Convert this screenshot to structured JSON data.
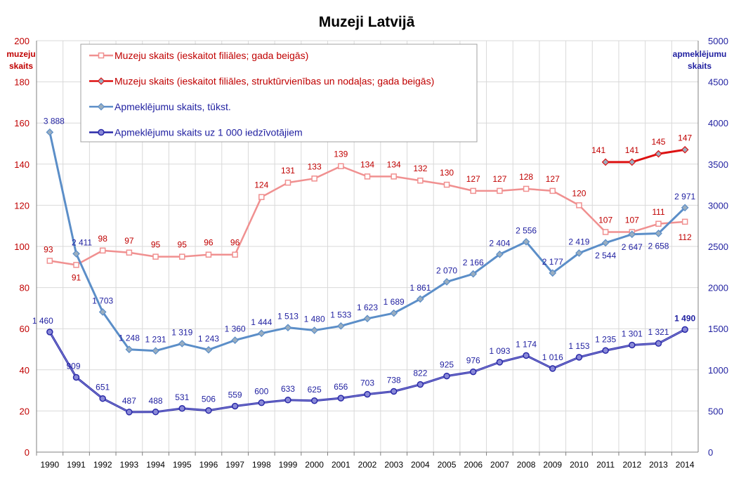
{
  "chart_data": {
    "type": "line",
    "title": "Muzeji Latvijā",
    "ylabel_left": [
      "muzeju",
      "skaits"
    ],
    "ylabel_right": [
      "apmeklējumu",
      "skaits"
    ],
    "ylim_left": [
      0,
      200
    ],
    "ylim_right": [
      0,
      5000
    ],
    "yticks_left": [
      "0",
      "20",
      "40",
      "60",
      "80",
      "100",
      "120",
      "140",
      "160",
      "180",
      "200"
    ],
    "yticks_right": [
      "0",
      "500",
      "1000",
      "1500",
      "2000",
      "2500",
      "3000",
      "3500",
      "4000",
      "4500",
      "5000"
    ],
    "grid": true,
    "legend_position": "top-left",
    "x": [
      "1990",
      "1991",
      "1992",
      "1993",
      "1994",
      "1995",
      "1996",
      "1997",
      "1998",
      "1999",
      "2000",
      "2001",
      "2002",
      "2003",
      "2004",
      "2005",
      "2006",
      "2007",
      "2008",
      "2009",
      "2010",
      "2011",
      "2012",
      "2013",
      "2014"
    ],
    "series": [
      {
        "name": "Muzeju skaits (ieskaitot filiāles; gada beigās)",
        "axis": "left",
        "color": "#f09090",
        "marker": "square",
        "values": [
          93,
          91,
          98,
          97,
          95,
          95,
          96,
          96,
          124,
          131,
          133,
          139,
          134,
          134,
          132,
          130,
          127,
          127,
          128,
          127,
          120,
          107,
          107,
          111,
          112
        ],
        "labels": [
          "93",
          "91",
          "98",
          "97",
          "95",
          "95",
          "96",
          "96",
          "124",
          "131",
          "133",
          "139",
          "134",
          "134",
          "132",
          "130",
          "127",
          "127",
          "128",
          "127",
          "120",
          "107",
          "107",
          "111",
          "112"
        ],
        "label_color": "#c00000"
      },
      {
        "name": "Muzeju skaits (ieskaitot filiāles, struktūrvienības un nodaļas; gada beigās)",
        "axis": "left",
        "color": "#dd1111",
        "marker": "diamond",
        "values": [
          null,
          null,
          null,
          null,
          null,
          null,
          null,
          null,
          null,
          null,
          null,
          null,
          null,
          null,
          null,
          null,
          null,
          null,
          null,
          null,
          null,
          141,
          141,
          145,
          147
        ],
        "labels": [
          "",
          "",
          "",
          "",
          "",
          "",
          "",
          "",
          "",
          "",
          "",
          "",
          "",
          "",
          "",
          "",
          "",
          "",
          "",
          "",
          "",
          "141",
          "141",
          "145",
          "147"
        ],
        "label_color": "#c00000"
      },
      {
        "name": "Apmeklējumu skaits, tūkst.",
        "axis": "right",
        "color": "#5b8ec8",
        "marker": "diamond",
        "values": [
          3888,
          2411,
          1703,
          1248,
          1231,
          1319,
          1243,
          1360,
          1444,
          1513,
          1480,
          1533,
          1623,
          1689,
          1861,
          2070,
          2166,
          2404,
          2556,
          2177,
          2419,
          2544,
          2647,
          2658,
          2971
        ],
        "labels": [
          "3 888",
          "2 411",
          "1 703",
          "1 248",
          "1 231",
          "1 319",
          "1 243",
          "1 360",
          "1 444",
          "1 513",
          "1 480",
          "1 533",
          "1 623",
          "1 689",
          "1 861",
          "2 070",
          "2 166",
          "2 404",
          "2 556",
          "2 177",
          "2 419",
          "2 544",
          "2 647",
          "2 658",
          "2 971"
        ],
        "label_color": "#1f1fa0"
      },
      {
        "name": "Apmeklējumu skaits uz 1 000 iedzīvotājiem",
        "axis": "right",
        "color": "#2a2aa8",
        "marker": "circle",
        "values": [
          1460,
          909,
          651,
          487,
          488,
          531,
          506,
          559,
          600,
          633,
          625,
          656,
          703,
          738,
          822,
          925,
          976,
          1093,
          1174,
          1016,
          1153,
          1235,
          1301,
          1321,
          1490
        ],
        "labels": [
          "1 460",
          "909",
          "651",
          "487",
          "488",
          "531",
          "506",
          "559",
          "600",
          "633",
          "625",
          "656",
          "703",
          "738",
          "822",
          "925",
          "976",
          "1 093",
          "1 174",
          "1 016",
          "1 153",
          "1 235",
          "1 301",
          "1 321",
          "1 490"
        ],
        "label_color": "#1f1fa0"
      }
    ]
  }
}
